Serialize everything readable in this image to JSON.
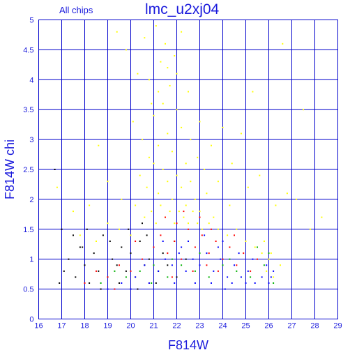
{
  "chart_data": {
    "type": "scatter",
    "title": "lmc_u2xj04",
    "subtitle": "All chips",
    "xlabel": "F814W",
    "ylabel": "F814W chi",
    "xlim": [
      16,
      29
    ],
    "ylim": [
      0,
      5
    ],
    "x_ticks": [
      "16",
      "17",
      "18",
      "19",
      "20",
      "21",
      "22",
      "23",
      "24",
      "25",
      "26",
      "27",
      "28",
      "29"
    ],
    "y_ticks": [
      "0",
      "0.5",
      "1",
      "1.5",
      "2",
      "2.5",
      "3",
      "3.5",
      "4",
      "4.5",
      "5"
    ],
    "grid": true,
    "series": [
      {
        "color": "#ffff00",
        "points": [
          [
            19.4,
            4.8
          ],
          [
            19.8,
            4.5
          ],
          [
            20.3,
            4.1
          ],
          [
            20.6,
            4.7
          ],
          [
            20.9,
            3.6
          ],
          [
            21.1,
            4.9
          ],
          [
            21.3,
            4.3
          ],
          [
            21.5,
            4.6
          ],
          [
            21.7,
            3.9
          ],
          [
            21.9,
            4.4
          ],
          [
            22.2,
            4.8
          ],
          [
            20.1,
            3.3
          ],
          [
            20.5,
            3.0
          ],
          [
            20.8,
            2.7
          ],
          [
            21.0,
            3.4
          ],
          [
            21.2,
            2.9
          ],
          [
            21.4,
            3.6
          ],
          [
            21.6,
            3.1
          ],
          [
            21.8,
            2.8
          ],
          [
            22.0,
            3.5
          ],
          [
            22.2,
            3.2
          ],
          [
            22.4,
            2.6
          ],
          [
            22.6,
            3.0
          ],
          [
            22.9,
            2.7
          ],
          [
            23.2,
            2.5
          ],
          [
            20.4,
            2.4
          ],
          [
            20.7,
            2.2
          ],
          [
            21.0,
            2.6
          ],
          [
            21.2,
            2.1
          ],
          [
            21.4,
            2.5
          ],
          [
            21.6,
            2.3
          ],
          [
            21.8,
            2.0
          ],
          [
            22.0,
            2.4
          ],
          [
            22.2,
            2.2
          ],
          [
            22.4,
            1.9
          ],
          [
            22.6,
            2.3
          ],
          [
            22.8,
            2.0
          ],
          [
            23.0,
            1.8
          ],
          [
            23.3,
            2.1
          ],
          [
            23.6,
            1.7
          ],
          [
            20.2,
            1.9
          ],
          [
            20.6,
            1.7
          ],
          [
            20.9,
            1.8
          ],
          [
            21.1,
            1.6
          ],
          [
            21.3,
            1.9
          ],
          [
            21.5,
            1.7
          ],
          [
            21.7,
            1.8
          ],
          [
            21.9,
            1.6
          ],
          [
            22.1,
            1.8
          ],
          [
            22.3,
            1.7
          ],
          [
            22.5,
            1.6
          ],
          [
            22.7,
            1.8
          ],
          [
            22.9,
            1.6
          ],
          [
            23.1,
            1.5
          ],
          [
            23.4,
            1.6
          ],
          [
            23.8,
            1.5
          ],
          [
            24.2,
            1.4
          ],
          [
            24.6,
            1.5
          ],
          [
            25.0,
            1.3
          ],
          [
            25.4,
            1.2
          ],
          [
            25.8,
            1.3
          ],
          [
            26.1,
            1.1
          ],
          [
            24.0,
            3.2
          ],
          [
            23.5,
            2.9
          ],
          [
            24.4,
            2.6
          ],
          [
            25.1,
            2.2
          ],
          [
            25.6,
            2.4
          ],
          [
            26.3,
            1.9
          ],
          [
            26.8,
            2.1
          ],
          [
            27.2,
            2.0
          ],
          [
            27.5,
            3.5
          ],
          [
            26.6,
            4.6
          ],
          [
            28.3,
            1.7
          ],
          [
            27.8,
            1.5
          ],
          [
            18.6,
            2.9
          ],
          [
            19.0,
            2.3
          ],
          [
            17.5,
            1.8
          ],
          [
            18.2,
            1.9
          ],
          [
            16.8,
            2.2
          ],
          [
            19.6,
            2.0
          ],
          [
            21.6,
            4.2
          ],
          [
            22.0,
            4.1
          ],
          [
            21.2,
            3.8
          ],
          [
            20.8,
            4.0
          ],
          [
            22.5,
            3.8
          ],
          [
            23.0,
            3.3
          ],
          [
            24.8,
            3.1
          ],
          [
            25.3,
            3.8
          ],
          [
            23.8,
            2.3
          ],
          [
            24.3,
            1.9
          ],
          [
            20.0,
            1.4
          ],
          [
            19.5,
            1.5
          ],
          [
            19.0,
            1.6
          ],
          [
            18.5,
            1.3
          ],
          [
            17.8,
            1.4
          ],
          [
            26.5,
            0.9
          ],
          [
            26.2,
            0.7
          ],
          [
            25.9,
            0.8
          ],
          [
            26.0,
            1.0
          ],
          [
            25.7,
            1.1
          ]
        ]
      },
      {
        "color": "#000000",
        "points": [
          [
            16.9,
            0.6
          ],
          [
            17.1,
            0.8
          ],
          [
            17.3,
            1.0
          ],
          [
            17.6,
            0.7
          ],
          [
            17.8,
            1.2
          ],
          [
            18.0,
            0.9
          ],
          [
            18.2,
            0.6
          ],
          [
            18.4,
            1.1
          ],
          [
            18.6,
            0.8
          ],
          [
            18.8,
            1.4
          ],
          [
            19.0,
            0.7
          ],
          [
            19.2,
            1.0
          ],
          [
            19.4,
            0.9
          ],
          [
            19.6,
            1.2
          ],
          [
            19.8,
            0.8
          ],
          [
            20.0,
            1.1
          ],
          [
            20.2,
            0.7
          ],
          [
            20.4,
            1.3
          ],
          [
            20.6,
            0.9
          ],
          [
            20.8,
            1.0
          ],
          [
            21.0,
            1.2
          ],
          [
            21.2,
            0.8
          ],
          [
            21.4,
            1.1
          ],
          [
            21.6,
            0.9
          ],
          [
            17.0,
            1.5
          ],
          [
            17.5,
            1.4
          ],
          [
            18.1,
            1.5
          ],
          [
            19.1,
            1.3
          ],
          [
            19.9,
            1.5
          ],
          [
            20.7,
            1.4
          ],
          [
            16.7,
            2.5
          ],
          [
            17.9,
            1.2
          ],
          [
            18.7,
            0.5
          ],
          [
            19.5,
            0.6
          ],
          [
            20.3,
            0.5
          ],
          [
            21.1,
            0.6
          ],
          [
            22.0,
            0.7
          ],
          [
            22.4,
            1.0
          ],
          [
            21.9,
            1.3
          ],
          [
            20.5,
            1.6
          ]
        ]
      },
      {
        "color": "#ff0000",
        "points": [
          [
            18.0,
            0.6
          ],
          [
            18.5,
            0.8
          ],
          [
            19.0,
            0.7
          ],
          [
            19.5,
            0.9
          ],
          [
            20.0,
            0.8
          ],
          [
            20.5,
            1.0
          ],
          [
            21.0,
            1.2
          ],
          [
            21.3,
            1.4
          ],
          [
            21.6,
            1.1
          ],
          [
            21.9,
            1.3
          ],
          [
            22.2,
            1.0
          ],
          [
            22.5,
            1.5
          ],
          [
            22.8,
            1.2
          ],
          [
            23.1,
            1.4
          ],
          [
            23.4,
            1.1
          ],
          [
            23.7,
            1.3
          ],
          [
            24.0,
            1.0
          ],
          [
            24.3,
            1.2
          ],
          [
            24.6,
            0.9
          ],
          [
            24.9,
            1.1
          ],
          [
            25.2,
            0.8
          ],
          [
            22.0,
            1.6
          ],
          [
            23.0,
            1.7
          ],
          [
            23.5,
            1.5
          ],
          [
            21.5,
            1.7
          ],
          [
            22.7,
            0.8
          ],
          [
            21.8,
            0.7
          ],
          [
            20.8,
            0.6
          ],
          [
            23.8,
            0.8
          ],
          [
            24.5,
            1.4
          ],
          [
            19.3,
            0.5
          ],
          [
            20.2,
            1.3
          ],
          [
            22.3,
            1.8
          ],
          [
            23.3,
            0.9
          ],
          [
            25.5,
            1.0
          ]
        ]
      },
      {
        "color": "#0000ff",
        "points": [
          [
            19.0,
            0.5
          ],
          [
            19.6,
            0.6
          ],
          [
            20.2,
            0.7
          ],
          [
            20.8,
            0.6
          ],
          [
            21.2,
            0.8
          ],
          [
            21.5,
            1.0
          ],
          [
            21.8,
            0.9
          ],
          [
            22.1,
            1.1
          ],
          [
            22.4,
            0.8
          ],
          [
            22.7,
            1.0
          ],
          [
            23.0,
            0.9
          ],
          [
            23.3,
            1.1
          ],
          [
            23.6,
            0.8
          ],
          [
            23.9,
            1.0
          ],
          [
            24.2,
            0.7
          ],
          [
            24.5,
            0.9
          ],
          [
            24.8,
            0.7
          ],
          [
            25.1,
            0.8
          ],
          [
            25.4,
            0.6
          ],
          [
            25.7,
            0.7
          ],
          [
            26.0,
            0.6
          ],
          [
            26.2,
            0.8
          ],
          [
            22.5,
            1.3
          ],
          [
            23.2,
            1.4
          ],
          [
            24.0,
            1.3
          ],
          [
            21.9,
            0.6
          ],
          [
            22.8,
            0.6
          ],
          [
            23.5,
            0.6
          ],
          [
            24.4,
            0.6
          ],
          [
            25.0,
            0.6
          ],
          [
            22.2,
            1.2
          ],
          [
            23.8,
            1.2
          ],
          [
            24.7,
            1.1
          ],
          [
            25.3,
            1.0
          ],
          [
            25.9,
            0.9
          ],
          [
            21.4,
            1.3
          ],
          [
            20.6,
            0.9
          ],
          [
            20.0,
            0.5
          ],
          [
            26.1,
            0.7
          ],
          [
            24.1,
            0.5
          ]
        ]
      },
      {
        "color": "#00b000",
        "points": [
          [
            19.8,
            0.7
          ],
          [
            20.4,
            0.8
          ],
          [
            21.0,
            0.9
          ],
          [
            21.6,
            0.7
          ],
          [
            22.2,
            0.9
          ],
          [
            22.8,
            0.8
          ],
          [
            23.4,
            0.7
          ],
          [
            24.0,
            0.9
          ],
          [
            24.6,
            0.8
          ],
          [
            25.2,
            0.7
          ],
          [
            25.8,
            0.9
          ],
          [
            26.0,
            1.1
          ],
          [
            25.5,
            1.2
          ],
          [
            24.3,
            1.0
          ],
          [
            23.0,
            1.1
          ],
          [
            21.8,
            1.0
          ],
          [
            18.7,
            0.6
          ],
          [
            19.3,
            0.8
          ],
          [
            20.9,
            0.6
          ],
          [
            26.2,
            0.6
          ]
        ]
      }
    ]
  }
}
